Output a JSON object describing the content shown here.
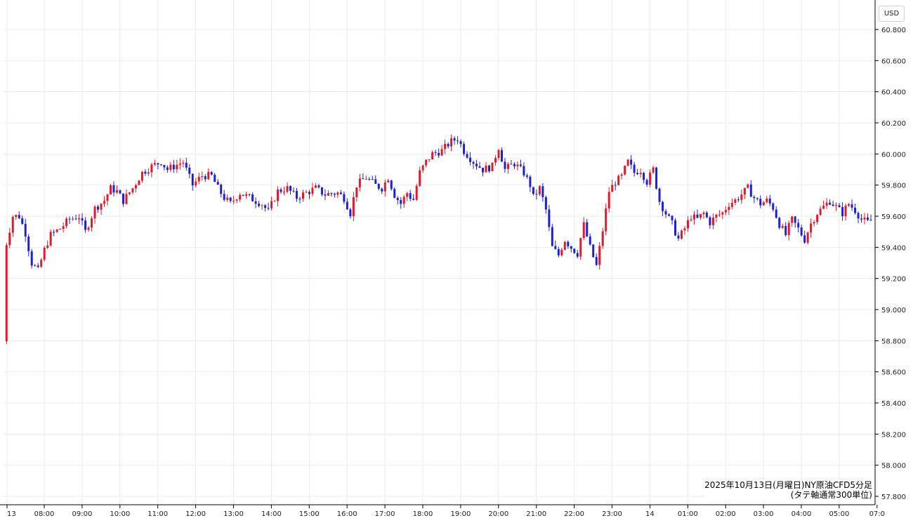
{
  "unit_label": "USD",
  "chart_title": "2025年10月13日(月曜日)NY原油CFD5分足",
  "chart_subtitle": "(タテ軸通常300単位)",
  "colors": {
    "up": "#e0192b",
    "down": "#1f1fd6",
    "grid": "#e6edf2",
    "axis": "#000000"
  },
  "chart_data": {
    "type": "candlestick",
    "title": "2025年10月13日(月曜日)NY原油CFD5分足",
    "subtitle": "(タテ軸通常300単位)",
    "y_unit": "USD",
    "ylim": [
      57.8,
      60.9
    ],
    "y_ticks": [
      "57.800",
      "58.000",
      "58.200",
      "58.400",
      "58.600",
      "58.800",
      "59.000",
      "59.200",
      "59.400",
      "59.600",
      "59.800",
      "60.000",
      "60.200",
      "60.400",
      "60.600",
      "60.800"
    ],
    "x_ticks": [
      {
        "label": "13",
        "hour": 7.0
      },
      {
        "label": "08:00",
        "hour": 8
      },
      {
        "label": "09:00",
        "hour": 9
      },
      {
        "label": "10:00",
        "hour": 10
      },
      {
        "label": "11:00",
        "hour": 11
      },
      {
        "label": "12:00",
        "hour": 12
      },
      {
        "label": "13:00",
        "hour": 13
      },
      {
        "label": "14:00",
        "hour": 14
      },
      {
        "label": "15:00",
        "hour": 15
      },
      {
        "label": "16:00",
        "hour": 16
      },
      {
        "label": "17:00",
        "hour": 17
      },
      {
        "label": "18:00",
        "hour": 18
      },
      {
        "label": "19:00",
        "hour": 19
      },
      {
        "label": "20:00",
        "hour": 20
      },
      {
        "label": "21:00",
        "hour": 21
      },
      {
        "label": "22:00",
        "hour": 22
      },
      {
        "label": "23:00",
        "hour": 23
      },
      {
        "label": "14",
        "hour": 24
      },
      {
        "label": "01:00",
        "hour": 25
      },
      {
        "label": "02:00",
        "hour": 26
      },
      {
        "label": "03:00",
        "hour": 27
      },
      {
        "label": "04:00",
        "hour": 28
      },
      {
        "label": "05:00",
        "hour": 29
      },
      {
        "label": "07:0",
        "hour": 30
      }
    ],
    "xlim_hours": [
      6.9,
      31.0
    ],
    "grid": true,
    "anchors": [
      [
        6.92,
        58.8
      ],
      [
        7.0,
        58.77
      ],
      [
        7.08,
        59.42
      ],
      [
        7.25,
        59.6
      ],
      [
        7.42,
        59.6
      ],
      [
        7.58,
        59.5
      ],
      [
        7.75,
        59.3
      ],
      [
        7.92,
        59.25
      ],
      [
        8.08,
        59.38
      ],
      [
        8.25,
        59.48
      ],
      [
        8.5,
        59.52
      ],
      [
        8.75,
        59.58
      ],
      [
        9.0,
        59.6
      ],
      [
        9.17,
        59.5
      ],
      [
        9.42,
        59.65
      ],
      [
        9.67,
        59.7
      ],
      [
        9.83,
        59.78
      ],
      [
        10.0,
        59.76
      ],
      [
        10.17,
        59.7
      ],
      [
        10.42,
        59.78
      ],
      [
        10.67,
        59.88
      ],
      [
        10.92,
        59.92
      ],
      [
        11.17,
        59.95
      ],
      [
        11.33,
        59.9
      ],
      [
        11.58,
        59.93
      ],
      [
        11.75,
        59.95
      ],
      [
        12.0,
        59.8
      ],
      [
        12.25,
        59.86
      ],
      [
        12.5,
        59.86
      ],
      [
        12.67,
        59.78
      ],
      [
        12.83,
        59.72
      ],
      [
        13.0,
        59.68
      ],
      [
        13.25,
        59.75
      ],
      [
        13.5,
        59.72
      ],
      [
        13.83,
        59.68
      ],
      [
        14.0,
        59.63
      ],
      [
        14.25,
        59.76
      ],
      [
        14.5,
        59.78
      ],
      [
        14.75,
        59.72
      ],
      [
        15.0,
        59.75
      ],
      [
        15.25,
        59.78
      ],
      [
        15.5,
        59.74
      ],
      [
        15.83,
        59.75
      ],
      [
        16.0,
        59.72
      ],
      [
        16.17,
        59.62
      ],
      [
        16.33,
        59.8
      ],
      [
        16.58,
        59.85
      ],
      [
        16.83,
        59.8
      ],
      [
        17.0,
        59.78
      ],
      [
        17.17,
        59.85
      ],
      [
        17.33,
        59.74
      ],
      [
        17.5,
        59.68
      ],
      [
        17.67,
        59.75
      ],
      [
        17.83,
        59.7
      ],
      [
        18.0,
        59.88
      ],
      [
        18.17,
        59.95
      ],
      [
        18.33,
        60.0
      ],
      [
        18.58,
        60.02
      ],
      [
        18.83,
        60.08
      ],
      [
        19.0,
        60.1
      ],
      [
        19.17,
        60.02
      ],
      [
        19.42,
        59.95
      ],
      [
        19.67,
        59.9
      ],
      [
        19.92,
        59.92
      ],
      [
        20.08,
        60.05
      ],
      [
        20.25,
        59.9
      ],
      [
        20.5,
        59.94
      ],
      [
        20.75,
        59.88
      ],
      [
        20.92,
        59.8
      ],
      [
        21.0,
        59.72
      ],
      [
        21.17,
        59.78
      ],
      [
        21.33,
        59.65
      ],
      [
        21.5,
        59.4
      ],
      [
        21.67,
        59.35
      ],
      [
        21.83,
        59.45
      ],
      [
        22.0,
        59.4
      ],
      [
        22.17,
        59.36
      ],
      [
        22.33,
        59.55
      ],
      [
        22.5,
        59.4
      ],
      [
        22.67,
        59.28
      ],
      [
        22.83,
        59.5
      ],
      [
        23.0,
        59.76
      ],
      [
        23.17,
        59.82
      ],
      [
        23.33,
        59.85
      ],
      [
        23.5,
        59.95
      ],
      [
        23.67,
        59.88
      ],
      [
        23.83,
        59.9
      ],
      [
        24.0,
        59.82
      ],
      [
        24.17,
        59.9
      ],
      [
        24.33,
        59.7
      ],
      [
        24.5,
        59.62
      ],
      [
        24.67,
        59.55
      ],
      [
        24.83,
        59.45
      ],
      [
        25.0,
        59.52
      ],
      [
        25.17,
        59.6
      ],
      [
        25.33,
        59.58
      ],
      [
        25.5,
        59.62
      ],
      [
        25.67,
        59.56
      ],
      [
        25.83,
        59.6
      ],
      [
        26.0,
        59.62
      ],
      [
        26.17,
        59.68
      ],
      [
        26.33,
        59.7
      ],
      [
        26.5,
        59.74
      ],
      [
        26.67,
        59.78
      ],
      [
        26.83,
        59.72
      ],
      [
        27.0,
        59.68
      ],
      [
        27.17,
        59.7
      ],
      [
        27.33,
        59.66
      ],
      [
        27.5,
        59.55
      ],
      [
        27.67,
        59.48
      ],
      [
        27.83,
        59.58
      ],
      [
        28.0,
        59.52
      ],
      [
        28.17,
        59.45
      ],
      [
        28.33,
        59.55
      ],
      [
        28.5,
        59.62
      ],
      [
        28.67,
        59.66
      ],
      [
        28.83,
        59.7
      ],
      [
        29.0,
        59.66
      ],
      [
        29.17,
        59.62
      ],
      [
        29.33,
        59.68
      ],
      [
        29.5,
        59.64
      ],
      [
        29.67,
        59.58
      ],
      [
        29.83,
        59.56
      ],
      [
        30.0,
        59.58
      ],
      [
        30.08,
        59.6
      ]
    ]
  }
}
